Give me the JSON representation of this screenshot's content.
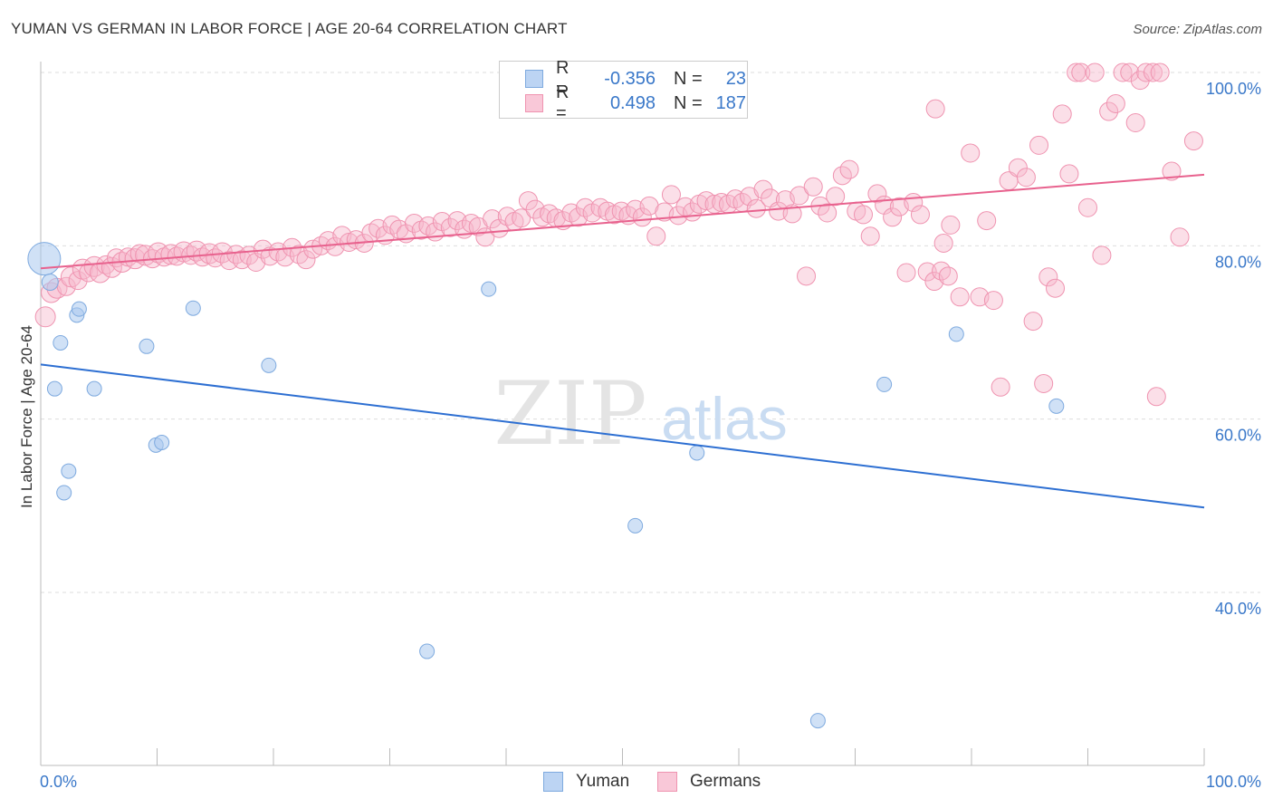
{
  "title": "YUMAN VS GERMAN IN LABOR FORCE | AGE 20-64 CORRELATION CHART",
  "source": "Source: ZipAtlas.com",
  "watermark": {
    "zip": "ZIP",
    "atlas": "atlas"
  },
  "legend_top": [
    {
      "r_label": "R =",
      "r_value": "-0.356",
      "n_label": "N =",
      "n_value": "23"
    },
    {
      "r_label": "R =",
      "r_value": "0.498",
      "n_label": "N =",
      "n_value": "187"
    }
  ],
  "legend_bottom": [
    "Yuman",
    "Germans"
  ],
  "colors": {
    "yuman_fill": "#aac8ef",
    "yuman_stroke": "#7eaadf",
    "yuman_line": "#2d6fd2",
    "german_fill": "#f6b7cb",
    "german_stroke": "#ef93b0",
    "german_line": "#e8628e",
    "axis_label": "#3a78c9",
    "grid": "#dddddd"
  },
  "chart_data": {
    "type": "scatter",
    "title": "YUMAN VS GERMAN IN LABOR FORCE | AGE 20-64 CORRELATION CHART",
    "xlabel": "",
    "ylabel": "In Labor Force | Age 20-64",
    "xlim": [
      0,
      100
    ],
    "ylim": [
      20,
      104
    ],
    "x_tick_labels": [
      "0.0%",
      "100.0%"
    ],
    "y_ticks": [
      40,
      60,
      80,
      100
    ],
    "y_tick_labels": [
      "40.0%",
      "60.0%",
      "80.0%",
      "100.0%"
    ],
    "grid": true,
    "legend": "top-center",
    "series": [
      {
        "name": "Yuman",
        "trend": {
          "x": [
            0,
            100
          ],
          "y": [
            66.3,
            49.8
          ]
        },
        "points": [
          [
            0.3,
            78.5,
            18
          ],
          [
            0.8,
            75.8,
            9
          ],
          [
            1.2,
            63.5,
            8
          ],
          [
            1.7,
            68.8,
            8
          ],
          [
            2.0,
            51.5,
            8
          ],
          [
            2.4,
            54.0,
            8
          ],
          [
            3.1,
            72.0,
            8
          ],
          [
            3.3,
            72.7,
            8
          ],
          [
            4.6,
            63.5,
            8
          ],
          [
            9.1,
            68.4,
            8
          ],
          [
            9.9,
            57.0,
            8
          ],
          [
            10.4,
            57.3,
            8
          ],
          [
            13.1,
            72.8,
            8
          ],
          [
            19.6,
            66.2,
            8
          ],
          [
            33.2,
            33.2,
            8
          ],
          [
            38.5,
            75.0,
            8
          ],
          [
            51.1,
            47.7,
            8
          ],
          [
            56.4,
            56.1,
            8
          ],
          [
            66.8,
            25.2,
            8
          ],
          [
            72.5,
            64.0,
            8
          ],
          [
            78.7,
            69.8,
            8
          ],
          [
            87.3,
            61.5,
            8
          ]
        ]
      },
      {
        "name": "Germans",
        "trend": {
          "x": [
            0,
            100
          ],
          "y": [
            77.4,
            88.2
          ]
        },
        "points": [
          [
            0.4,
            71.8,
            11
          ],
          [
            0.9,
            74.6,
            11
          ],
          [
            1.4,
            75.1,
            11
          ],
          [
            2.2,
            75.3,
            10
          ],
          [
            2.6,
            76.4,
            11
          ],
          [
            3.2,
            76.0,
            10
          ],
          [
            3.6,
            77.3,
            11
          ],
          [
            4.1,
            76.9,
            10
          ],
          [
            4.6,
            77.6,
            11
          ],
          [
            5.1,
            76.9,
            11
          ],
          [
            5.6,
            77.8,
            10
          ],
          [
            6.1,
            77.5,
            11
          ],
          [
            6.5,
            78.6,
            10
          ],
          [
            7.0,
            78.1,
            11
          ],
          [
            7.5,
            78.7,
            10
          ],
          [
            8.1,
            78.5,
            11
          ],
          [
            8.5,
            79.1,
            10
          ],
          [
            9.0,
            78.9,
            11
          ],
          [
            9.6,
            78.5,
            10
          ],
          [
            10.1,
            79.2,
            11
          ],
          [
            10.6,
            78.7,
            10
          ],
          [
            11.2,
            79.0,
            11
          ],
          [
            11.7,
            78.8,
            10
          ],
          [
            12.3,
            79.3,
            11
          ],
          [
            12.9,
            78.9,
            10
          ],
          [
            13.4,
            79.4,
            11
          ],
          [
            13.9,
            78.7,
            10
          ],
          [
            14.5,
            79.1,
            11
          ],
          [
            15.0,
            78.6,
            10
          ],
          [
            15.6,
            79.2,
            11
          ],
          [
            16.2,
            78.3,
            10
          ],
          [
            16.8,
            79.0,
            10
          ],
          [
            17.3,
            78.4,
            10
          ],
          [
            17.9,
            78.9,
            10
          ],
          [
            18.5,
            78.1,
            10
          ],
          [
            19.1,
            79.6,
            10
          ],
          [
            19.7,
            78.8,
            10
          ],
          [
            20.4,
            79.3,
            10
          ],
          [
            21.0,
            78.7,
            10
          ],
          [
            21.6,
            79.8,
            10
          ],
          [
            22.2,
            79.0,
            10
          ],
          [
            22.8,
            78.4,
            10
          ],
          [
            23.4,
            79.6,
            10
          ],
          [
            24.1,
            80.0,
            10
          ],
          [
            24.7,
            80.6,
            10
          ],
          [
            25.3,
            79.9,
            10
          ],
          [
            25.9,
            81.2,
            10
          ],
          [
            26.5,
            80.4,
            10
          ],
          [
            27.1,
            80.7,
            10
          ],
          [
            27.8,
            80.3,
            10
          ],
          [
            28.4,
            81.5,
            10
          ],
          [
            29.0,
            82.0,
            10
          ],
          [
            29.6,
            81.2,
            10
          ],
          [
            30.2,
            82.4,
            10
          ],
          [
            30.8,
            81.9,
            10
          ],
          [
            31.4,
            81.4,
            10
          ],
          [
            32.1,
            82.6,
            10
          ],
          [
            32.7,
            81.8,
            10
          ],
          [
            33.3,
            82.3,
            10
          ],
          [
            33.9,
            81.6,
            10
          ],
          [
            34.5,
            82.8,
            10
          ],
          [
            35.2,
            82.1,
            10
          ],
          [
            35.8,
            82.9,
            10
          ],
          [
            36.4,
            81.9,
            10
          ],
          [
            37.0,
            82.6,
            10
          ],
          [
            37.6,
            82.2,
            10
          ],
          [
            38.2,
            81.0,
            10
          ],
          [
            38.8,
            83.1,
            10
          ],
          [
            39.4,
            82.0,
            10
          ],
          [
            40.1,
            83.4,
            10
          ],
          [
            40.7,
            82.8,
            10
          ],
          [
            41.3,
            83.2,
            10
          ],
          [
            41.9,
            85.2,
            10
          ],
          [
            42.5,
            84.2,
            10
          ],
          [
            43.1,
            83.3,
            10
          ],
          [
            43.7,
            83.7,
            10
          ],
          [
            44.3,
            83.2,
            10
          ],
          [
            44.9,
            82.9,
            10
          ],
          [
            45.6,
            83.8,
            10
          ],
          [
            46.2,
            83.3,
            10
          ],
          [
            46.8,
            84.4,
            10
          ],
          [
            47.4,
            83.8,
            10
          ],
          [
            48.1,
            84.4,
            10
          ],
          [
            48.7,
            84.0,
            10
          ],
          [
            49.3,
            83.6,
            10
          ],
          [
            49.9,
            84.0,
            10
          ],
          [
            50.5,
            83.5,
            10
          ],
          [
            51.1,
            84.2,
            10
          ],
          [
            51.7,
            83.3,
            10
          ],
          [
            52.3,
            84.6,
            10
          ],
          [
            52.9,
            81.1,
            10
          ],
          [
            53.6,
            83.9,
            10
          ],
          [
            54.2,
            85.9,
            10
          ],
          [
            54.8,
            83.5,
            10
          ],
          [
            55.4,
            84.5,
            10
          ],
          [
            56.0,
            83.9,
            10
          ],
          [
            56.6,
            84.8,
            10
          ],
          [
            57.2,
            85.2,
            10
          ],
          [
            57.9,
            84.8,
            10
          ],
          [
            58.5,
            85.0,
            10
          ],
          [
            59.1,
            84.8,
            10
          ],
          [
            59.7,
            85.4,
            10
          ],
          [
            60.3,
            85.0,
            10
          ],
          [
            60.9,
            85.7,
            10
          ],
          [
            61.5,
            84.3,
            10
          ],
          [
            62.1,
            86.5,
            10
          ],
          [
            62.7,
            85.5,
            10
          ],
          [
            63.4,
            84.0,
            10
          ],
          [
            64.0,
            85.3,
            10
          ],
          [
            64.6,
            83.7,
            10
          ],
          [
            65.2,
            85.8,
            10
          ],
          [
            65.8,
            76.5,
            10
          ],
          [
            66.4,
            86.8,
            10
          ],
          [
            67.0,
            84.6,
            10
          ],
          [
            67.6,
            83.8,
            10
          ],
          [
            68.3,
            85.7,
            10
          ],
          [
            68.9,
            88.1,
            10
          ],
          [
            69.5,
            88.8,
            10
          ],
          [
            70.1,
            84.0,
            10
          ],
          [
            70.7,
            83.6,
            10
          ],
          [
            71.3,
            81.1,
            10
          ],
          [
            71.9,
            86.0,
            10
          ],
          [
            72.5,
            84.7,
            10
          ],
          [
            73.2,
            83.3,
            10
          ],
          [
            73.8,
            84.5,
            10
          ],
          [
            74.4,
            76.9,
            10
          ],
          [
            75.0,
            85.0,
            10
          ],
          [
            75.6,
            83.6,
            10
          ],
          [
            76.2,
            77.0,
            10
          ],
          [
            76.8,
            75.9,
            10
          ],
          [
            77.4,
            77.1,
            10
          ],
          [
            78.0,
            76.5,
            10
          ],
          [
            76.9,
            95.8,
            10
          ],
          [
            77.6,
            80.3,
            10
          ],
          [
            78.2,
            82.4,
            10
          ],
          [
            79.0,
            74.1,
            10
          ],
          [
            79.9,
            90.7,
            10
          ],
          [
            80.7,
            74.1,
            10
          ],
          [
            81.3,
            82.9,
            10
          ],
          [
            81.9,
            73.7,
            10
          ],
          [
            82.5,
            63.7,
            10
          ],
          [
            83.2,
            87.5,
            10
          ],
          [
            84.0,
            89.0,
            10
          ],
          [
            84.7,
            87.9,
            10
          ],
          [
            85.3,
            71.3,
            10
          ],
          [
            85.8,
            91.6,
            10
          ],
          [
            86.2,
            64.1,
            10
          ],
          [
            86.6,
            76.4,
            10
          ],
          [
            87.2,
            75.1,
            10
          ],
          [
            87.8,
            95.2,
            10
          ],
          [
            88.4,
            88.3,
            10
          ],
          [
            89.0,
            100.0,
            10
          ],
          [
            89.4,
            100.0,
            10
          ],
          [
            90.0,
            84.4,
            10
          ],
          [
            90.6,
            100.0,
            10
          ],
          [
            91.2,
            78.9,
            10
          ],
          [
            91.8,
            95.5,
            10
          ],
          [
            92.4,
            96.4,
            10
          ],
          [
            93.0,
            100.0,
            10
          ],
          [
            93.6,
            100.0,
            10
          ],
          [
            94.1,
            94.2,
            10
          ],
          [
            94.5,
            99.1,
            10
          ],
          [
            95.0,
            100.0,
            10
          ],
          [
            95.6,
            100.0,
            10
          ],
          [
            96.2,
            100.0,
            10
          ],
          [
            95.9,
            62.6,
            10
          ],
          [
            97.2,
            88.6,
            10
          ],
          [
            97.9,
            81.0,
            10
          ],
          [
            99.1,
            92.1,
            10
          ]
        ]
      }
    ]
  }
}
